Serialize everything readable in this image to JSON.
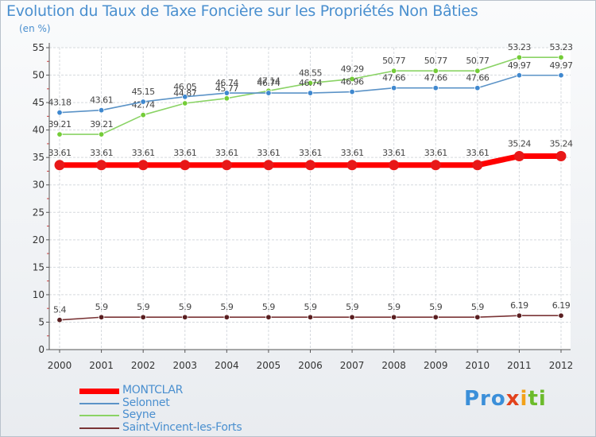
{
  "chart_data": {
    "type": "line",
    "title": "Evolution du Taux de Taxe Foncière sur les Propriétés Non Bâties",
    "subtitle": "(en %)",
    "ylim": [
      0,
      55
    ],
    "yticks": [
      "0",
      "5",
      "10",
      "15",
      "20",
      "25",
      "30",
      "35",
      "40",
      "45",
      "50",
      "55"
    ],
    "x": [
      "2000",
      "2001",
      "2002",
      "2003",
      "2004",
      "2005",
      "2006",
      "2007",
      "2008",
      "2009",
      "2010",
      "2011",
      "2012"
    ],
    "grid": true,
    "legend_position": "bottom-left",
    "series": [
      {
        "name": "MONTCLAR",
        "color": "#ff0000",
        "marker_color": "#e81818",
        "emphasis": true,
        "values": [
          33.61,
          33.61,
          33.61,
          33.61,
          33.61,
          33.61,
          33.61,
          33.61,
          33.61,
          33.61,
          33.61,
          35.24,
          35.24
        ],
        "labels": [
          "33.61",
          "33.61",
          "33.61",
          "33.61",
          "33.61",
          "33.61",
          "33.61",
          "33.61",
          "33.61",
          "33.61",
          "33.61",
          "35.24",
          "35.24"
        ]
      },
      {
        "name": "Selonnet",
        "color": "#5b93c7",
        "marker_color": "#3f88cf",
        "values": [
          43.18,
          43.61,
          45.15,
          46.05,
          46.74,
          46.74,
          46.74,
          46.96,
          47.66,
          47.66,
          47.66,
          49.97,
          49.97
        ],
        "labels": [
          "43.18",
          "43.61",
          "45.15",
          "46.05",
          "46.74",
          "46.74",
          "46.74",
          "46.96",
          "47.66",
          "47.66",
          "47.66",
          "49.97",
          "49.97"
        ]
      },
      {
        "name": "Seyne",
        "color": "#8ad365",
        "marker_color": "#74cc38",
        "values": [
          39.21,
          39.21,
          42.74,
          44.87,
          45.77,
          47.14,
          48.55,
          49.29,
          50.77,
          50.77,
          50.77,
          53.23,
          53.23
        ],
        "labels": [
          "39.21",
          "39.21",
          "42.74",
          "44.87",
          "45.77",
          "47.14",
          "48.55",
          "49.29",
          "50.77",
          "50.77",
          "50.77",
          "53.23",
          "53.23"
        ]
      },
      {
        "name": "Saint-Vincent-les-Forts",
        "color": "#7a3436",
        "marker_color": "#5a1f21",
        "values": [
          5.4,
          5.9,
          5.9,
          5.9,
          5.9,
          5.9,
          5.9,
          5.9,
          5.9,
          5.9,
          5.9,
          6.19,
          6.19
        ],
        "labels": [
          "5.4",
          "5.9",
          "5.9",
          "5.9",
          "5.9",
          "5.9",
          "5.9",
          "5.9",
          "5.9",
          "5.9",
          "5.9",
          "6.19",
          "6.19"
        ]
      }
    ]
  },
  "logo": {
    "part1": "Pro",
    "part2": "x",
    "part3": "i",
    "part4": "ti"
  }
}
